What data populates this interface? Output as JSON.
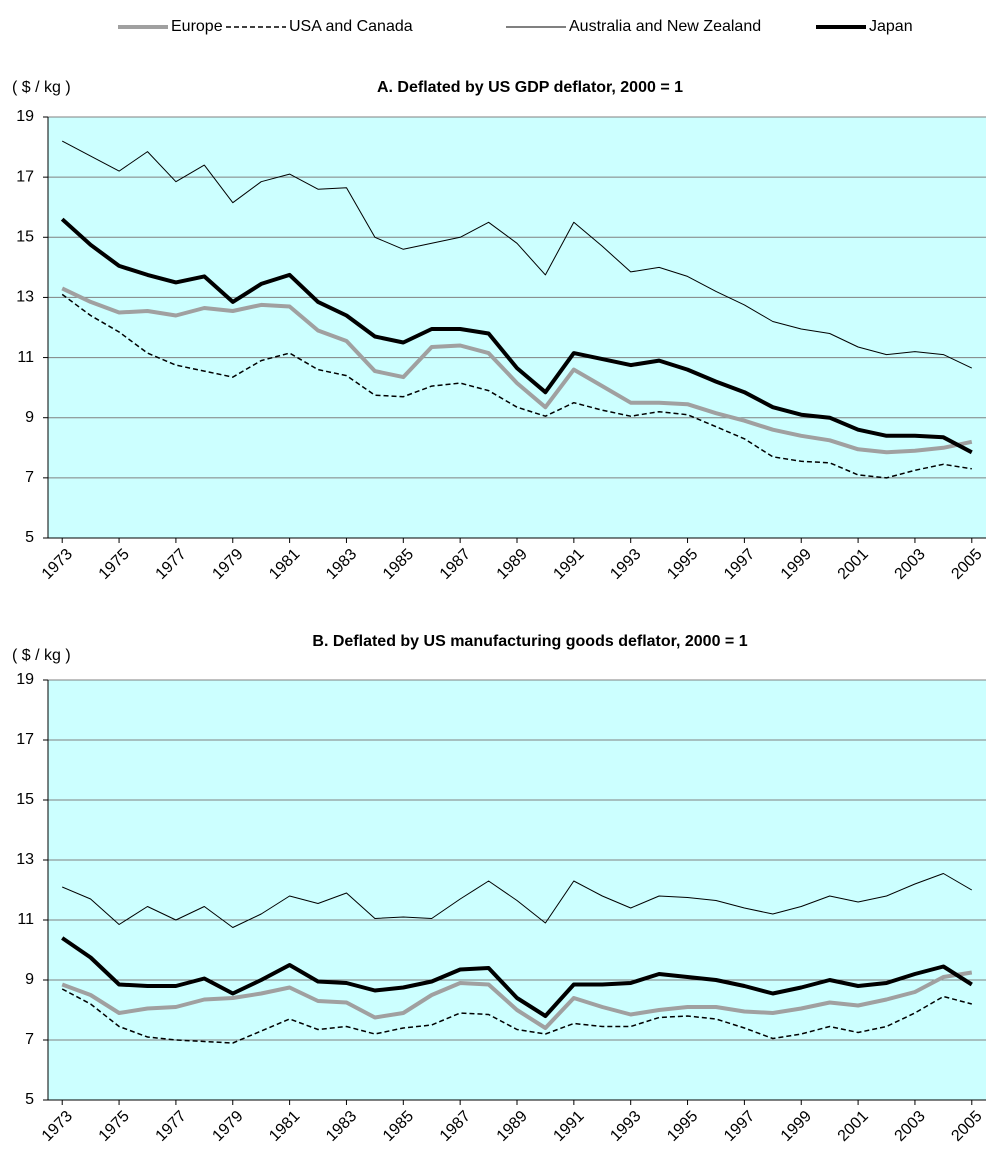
{
  "chart_data": [
    {
      "type": "line",
      "title": "A. Deflated by US GDP deflator, 2000 = 1",
      "ylabel": "( $ / kg )",
      "x": [
        1973,
        1974,
        1975,
        1976,
        1977,
        1978,
        1979,
        1980,
        1981,
        1982,
        1983,
        1984,
        1985,
        1986,
        1987,
        1988,
        1989,
        1990,
        1991,
        1992,
        1993,
        1994,
        1995,
        1996,
        1997,
        1998,
        1999,
        2000,
        2001,
        2002,
        2003,
        2004,
        2005
      ],
      "xlim": [
        1972.5,
        2005.5
      ],
      "xticks": [
        1973,
        1975,
        1977,
        1979,
        1981,
        1983,
        1985,
        1987,
        1989,
        1991,
        1993,
        1995,
        1997,
        1999,
        2001,
        2003,
        2005
      ],
      "ylim": [
        5,
        19
      ],
      "yticks": [
        5,
        7,
        9,
        11,
        13,
        15,
        17,
        19
      ],
      "grid": true,
      "background": "#ccffff",
      "series": [
        {
          "name": "Europe",
          "color": "#a0a0a0",
          "linestyle": "solid",
          "linewidth": 4,
          "values": [
            13.3,
            12.85,
            12.5,
            12.55,
            12.4,
            12.65,
            12.55,
            12.75,
            12.7,
            11.9,
            11.55,
            10.55,
            10.35,
            11.35,
            11.4,
            11.15,
            10.15,
            9.35,
            10.6,
            10.05,
            9.5,
            9.5,
            9.45,
            9.15,
            8.9,
            8.6,
            8.4,
            8.25,
            7.95,
            7.85,
            7.9,
            8.0,
            8.2
          ]
        },
        {
          "name": "USA and Canada",
          "color": "#000000",
          "linestyle": "dashed",
          "linewidth": 1.5,
          "values": [
            13.1,
            12.4,
            11.85,
            11.15,
            10.75,
            10.55,
            10.35,
            10.9,
            11.15,
            10.6,
            10.4,
            9.75,
            9.7,
            10.05,
            10.15,
            9.9,
            9.35,
            9.05,
            9.5,
            9.25,
            9.05,
            9.2,
            9.1,
            8.7,
            8.3,
            7.7,
            7.55,
            7.5,
            7.1,
            7.0,
            7.25,
            7.45,
            7.3
          ]
        },
        {
          "name": "Australia and New Zealand",
          "color": "#000000",
          "linestyle": "solid",
          "linewidth": 1,
          "values": [
            18.2,
            17.7,
            17.2,
            17.85,
            16.85,
            17.4,
            16.15,
            16.85,
            17.1,
            16.6,
            16.65,
            15.0,
            14.6,
            14.8,
            15.0,
            15.5,
            14.8,
            13.75,
            15.5,
            14.7,
            13.85,
            14.0,
            13.7,
            13.2,
            12.75,
            12.2,
            11.95,
            11.8,
            11.35,
            11.1,
            11.2,
            11.1,
            10.65
          ]
        },
        {
          "name": "Japan",
          "color": "#000000",
          "linestyle": "solid",
          "linewidth": 4,
          "values": [
            15.6,
            14.75,
            14.05,
            13.75,
            13.5,
            13.7,
            12.85,
            13.45,
            13.75,
            12.85,
            12.4,
            11.7,
            11.5,
            11.95,
            11.95,
            11.8,
            10.65,
            9.85,
            11.15,
            10.95,
            10.75,
            10.9,
            10.6,
            10.2,
            9.85,
            9.35,
            9.1,
            9.0,
            8.6,
            8.4,
            8.4,
            8.35,
            7.85
          ]
        }
      ]
    },
    {
      "type": "line",
      "title": "B. Deflated by US manufacturing goods deflator, 2000 = 1",
      "ylabel": "( $ / kg )",
      "x": [
        1973,
        1974,
        1975,
        1976,
        1977,
        1978,
        1979,
        1980,
        1981,
        1982,
        1983,
        1984,
        1985,
        1986,
        1987,
        1988,
        1989,
        1990,
        1991,
        1992,
        1993,
        1994,
        1995,
        1996,
        1997,
        1998,
        1999,
        2000,
        2001,
        2002,
        2003,
        2004,
        2005
      ],
      "xlim": [
        1972.5,
        2005.5
      ],
      "xticks": [
        1973,
        1975,
        1977,
        1979,
        1981,
        1983,
        1985,
        1987,
        1989,
        1991,
        1993,
        1995,
        1997,
        1999,
        2001,
        2003,
        2005
      ],
      "ylim": [
        5,
        19
      ],
      "yticks": [
        5,
        7,
        9,
        11,
        13,
        15,
        17,
        19
      ],
      "grid": true,
      "background": "#ccffff",
      "series": [
        {
          "name": "Europe",
          "color": "#a0a0a0",
          "linestyle": "solid",
          "linewidth": 4,
          "values": [
            8.85,
            8.5,
            7.9,
            8.05,
            8.1,
            8.35,
            8.4,
            8.55,
            8.75,
            8.3,
            8.25,
            7.75,
            7.9,
            8.5,
            8.9,
            8.85,
            8.0,
            7.4,
            8.4,
            8.1,
            7.85,
            8.0,
            8.1,
            8.1,
            7.95,
            7.9,
            8.05,
            8.25,
            8.15,
            8.35,
            8.6,
            9.1,
            9.25
          ]
        },
        {
          "name": "USA and Canada",
          "color": "#000000",
          "linestyle": "dashed",
          "linewidth": 1.5,
          "values": [
            8.7,
            8.2,
            7.45,
            7.1,
            7.0,
            6.95,
            6.9,
            7.3,
            7.7,
            7.35,
            7.45,
            7.2,
            7.4,
            7.5,
            7.9,
            7.85,
            7.35,
            7.2,
            7.55,
            7.45,
            7.45,
            7.75,
            7.8,
            7.7,
            7.4,
            7.05,
            7.2,
            7.45,
            7.25,
            7.45,
            7.9,
            8.45,
            8.2
          ]
        },
        {
          "name": "Australia and New Zealand",
          "color": "#000000",
          "linestyle": "solid",
          "linewidth": 1,
          "values": [
            12.1,
            11.7,
            10.85,
            11.45,
            11.0,
            11.45,
            10.75,
            11.2,
            11.8,
            11.55,
            11.9,
            11.05,
            11.1,
            11.05,
            11.7,
            12.3,
            11.65,
            10.9,
            12.3,
            11.8,
            11.4,
            11.8,
            11.75,
            11.65,
            11.4,
            11.2,
            11.45,
            11.8,
            11.6,
            11.8,
            12.2,
            12.55,
            12.0
          ]
        },
        {
          "name": "Japan",
          "color": "#000000",
          "linestyle": "solid",
          "linewidth": 4,
          "values": [
            10.4,
            9.75,
            8.85,
            8.8,
            8.8,
            9.05,
            8.55,
            9.0,
            9.5,
            8.95,
            8.9,
            8.65,
            8.75,
            8.95,
            9.35,
            9.4,
            8.4,
            7.8,
            8.85,
            8.85,
            8.9,
            9.2,
            9.1,
            9.0,
            8.8,
            8.55,
            8.75,
            9.0,
            8.8,
            8.9,
            9.2,
            9.45,
            8.85
          ]
        }
      ]
    }
  ]
}
